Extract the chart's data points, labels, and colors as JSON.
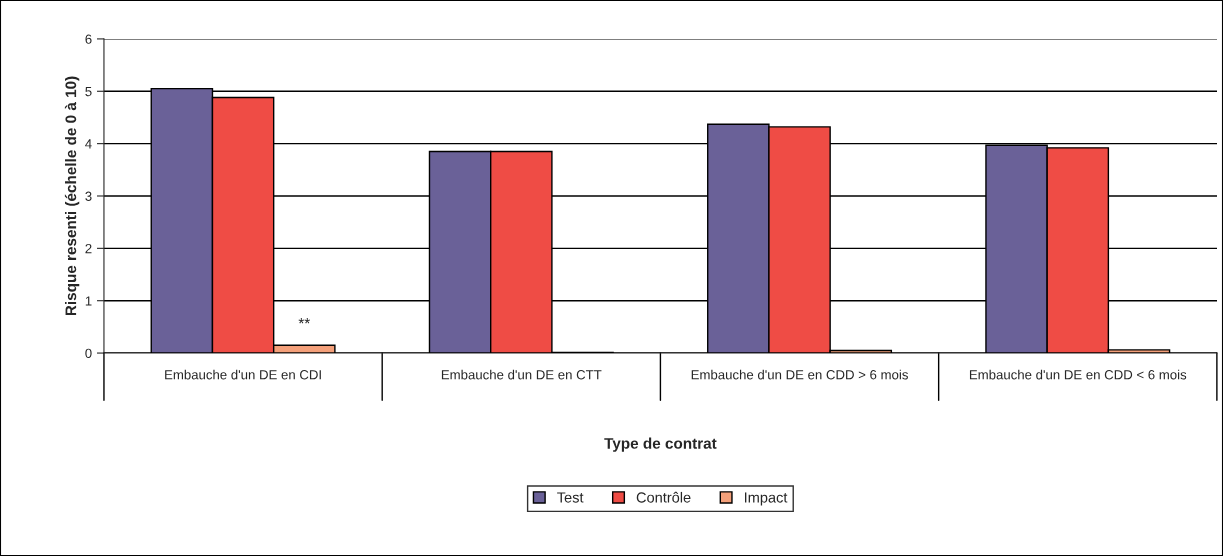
{
  "chart_data": {
    "type": "bar",
    "xlabel": "Type de contrat",
    "ylabel": "Risque resenti (échelle de 0 à 10)",
    "categories": [
      "Embauche d'un DE en CDI",
      "Embauche d'un DE en CTT",
      "Embauche d'un DE en CDD > 6 mois",
      "Embauche d'un DE en CDD < 6 mois"
    ],
    "series": [
      {
        "name": "Test",
        "color": "#6a6198",
        "values": [
          5.05,
          3.85,
          4.37,
          3.97
        ]
      },
      {
        "name": "Contrôle",
        "color": "#ef4c45",
        "values": [
          4.88,
          3.85,
          4.32,
          3.92
        ]
      },
      {
        "name": "Impact",
        "color": "#f4a07a",
        "values": [
          0.15,
          0.01,
          0.05,
          0.06
        ]
      }
    ],
    "ylim": [
      0,
      6
    ],
    "yticks": [
      0,
      1,
      2,
      3,
      4,
      5,
      6
    ],
    "grid": "y",
    "legend": "bottom",
    "annotations": [
      "**"
    ]
  }
}
